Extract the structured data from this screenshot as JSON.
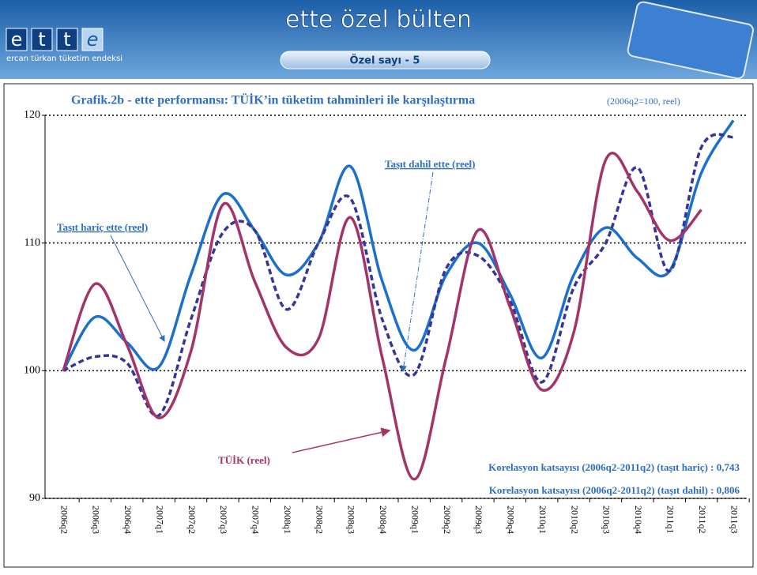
{
  "header": {
    "logo_letters": [
      "e",
      "t",
      "t",
      "e"
    ],
    "logo_caption": "ercan türkan tüketim endeksi",
    "title": "ette özel bülten",
    "issue": "Özel sayı - 5"
  },
  "chart_data": {
    "type": "line",
    "title": "Grafik.2b - ette performansı: TÜİK’in tüketim tahminleri ile karşılaştırma",
    "subtitle": "(2006q2=100, reel)",
    "categories": [
      "2006q2",
      "2006q3",
      "2006q4",
      "2007q1",
      "2007q2",
      "2007q3",
      "2007q4",
      "2008q1",
      "2008q2",
      "2008q3",
      "2008q4",
      "2009q1",
      "2009q2",
      "2009q3",
      "2009q4",
      "2010q1",
      "2010q2",
      "2010q3",
      "2010q4",
      "2011q1",
      "2011q2",
      "2011q3"
    ],
    "series": [
      {
        "name": "Taşıt hariç ette (reel)",
        "color": "#1a70cc",
        "dash": false,
        "values": [
          100,
          104.2,
          102.2,
          100.3,
          107.5,
          113.8,
          111,
          107.5,
          110,
          116,
          107,
          101.6,
          107.5,
          110,
          106,
          101,
          107.5,
          111.2,
          108.8,
          107.8,
          115.5,
          119.6
        ]
      },
      {
        "name": "Taşıt dahil ette (reel)",
        "color": "#35359a",
        "dash": true,
        "values": [
          100,
          101.1,
          100.6,
          96.5,
          104,
          110.8,
          111,
          104.8,
          110,
          113.5,
          104,
          99.7,
          108,
          109,
          105.5,
          99.1,
          106.5,
          110,
          115.9,
          107.8,
          117.5,
          118.3
        ]
      },
      {
        "name": "TÜİK (reel)",
        "color": "#a3346b",
        "dash": false,
        "values": [
          100,
          106.8,
          102,
          96.3,
          101.5,
          113,
          107,
          101.8,
          102.5,
          112,
          101,
          91.5,
          101,
          111,
          105,
          98.5,
          103,
          116.5,
          114,
          110.2,
          112.6,
          null
        ]
      }
    ],
    "ylim": [
      90,
      120
    ],
    "yticks": [
      90,
      100,
      110,
      120
    ],
    "grid": true,
    "annotations": [
      "Korelasyon katsayısı (2006q2-2011q2) (taşıt hariç) : 0,743",
      "Korelasyon katsayısı (2006q2-2011q2) (taşıt dahil) : 0,806"
    ]
  }
}
